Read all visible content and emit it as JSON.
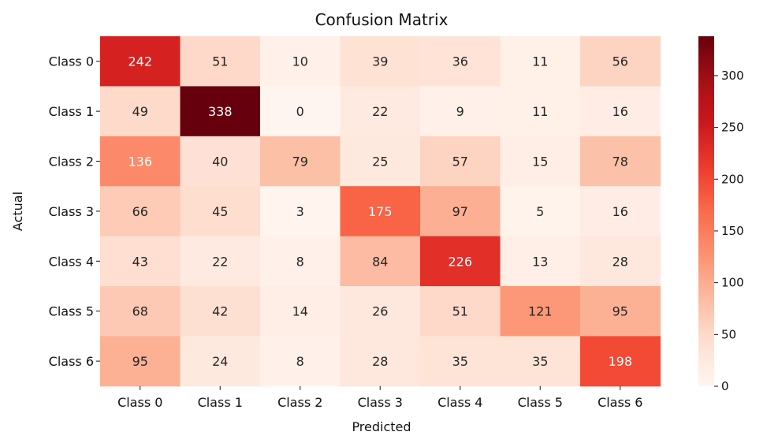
{
  "chart_data": {
    "type": "heatmap",
    "title": "Confusion Matrix",
    "xlabel": "Predicted",
    "ylabel": "Actual",
    "x_categories": [
      "Class 0",
      "Class 1",
      "Class 2",
      "Class 3",
      "Class 4",
      "Class 5",
      "Class 6"
    ],
    "y_categories": [
      "Class 0",
      "Class 1",
      "Class 2",
      "Class 3",
      "Class 4",
      "Class 5",
      "Class 6"
    ],
    "matrix": [
      [
        242,
        51,
        10,
        39,
        36,
        11,
        56
      ],
      [
        49,
        338,
        0,
        22,
        9,
        11,
        16
      ],
      [
        136,
        40,
        79,
        25,
        57,
        15,
        78
      ],
      [
        66,
        45,
        3,
        175,
        97,
        5,
        16
      ],
      [
        43,
        22,
        8,
        84,
        226,
        13,
        28
      ],
      [
        68,
        42,
        14,
        26,
        51,
        121,
        95
      ],
      [
        95,
        24,
        8,
        28,
        35,
        35,
        198
      ]
    ],
    "colormap": "Reds",
    "colorbar": {
      "range": [
        0,
        338
      ],
      "ticks": [
        0,
        50,
        100,
        150,
        200,
        250,
        300
      ]
    },
    "colors": {
      "low": "#fff5f0",
      "high": "#67000d",
      "text_dark": "#262626",
      "text_light": "#ffffff"
    }
  }
}
